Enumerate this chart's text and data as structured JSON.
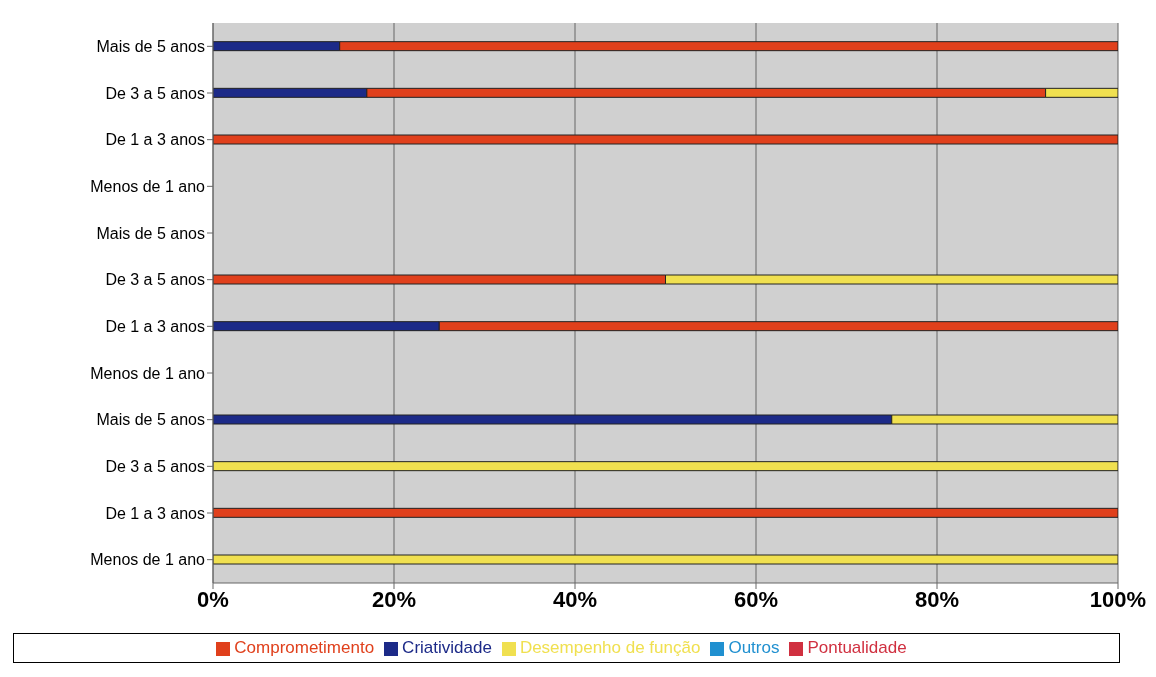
{
  "chart_data": {
    "type": "bar",
    "orientation": "horizontal",
    "stacked": true,
    "categories": [
      "Mais de 5 anos",
      "De 3 a 5 anos",
      "De 1 a 3 anos",
      "Menos de 1 ano",
      "Mais de 5 anos",
      "De 3 a 5 anos",
      "De 1 a 3 anos",
      "Menos de 1 ano",
      "Mais de 5 anos",
      "De 3 a 5 anos",
      "De 1 a 3 anos",
      "Menos de 1 ano"
    ],
    "series": [
      {
        "name": "Criatividade",
        "color": "#1c2a88",
        "values": [
          14,
          17,
          0,
          null,
          null,
          0,
          25,
          null,
          75,
          0,
          0,
          0
        ]
      },
      {
        "name": "Comprometimento",
        "color": "#e0401c",
        "values": [
          86,
          75,
          100,
          null,
          null,
          50,
          75,
          null,
          0,
          0,
          100,
          0
        ]
      },
      {
        "name": "Desempenho de função",
        "color": "#f0e050",
        "values": [
          0,
          8,
          0,
          null,
          null,
          50,
          0,
          null,
          25,
          100,
          0,
          100
        ]
      },
      {
        "name": "Pontualidade",
        "color": "#d03040",
        "values": [
          0,
          0,
          0,
          null,
          null,
          0,
          0,
          null,
          0,
          0,
          0,
          0
        ]
      },
      {
        "name": "Outros",
        "color": "#2090d0",
        "values": [
          0,
          0,
          0,
          null,
          null,
          0,
          0,
          null,
          0,
          0,
          0,
          0
        ]
      }
    ],
    "xlim": [
      0,
      100
    ],
    "xticks": [
      {
        "value": 0,
        "label": "0%"
      },
      {
        "value": 20,
        "label": "20%"
      },
      {
        "value": 40,
        "label": "40%"
      },
      {
        "value": 60,
        "label": "60%"
      },
      {
        "value": 80,
        "label": "80%"
      },
      {
        "value": 100,
        "label": "100%"
      }
    ],
    "grid": "x",
    "legend": "bottom"
  }
}
